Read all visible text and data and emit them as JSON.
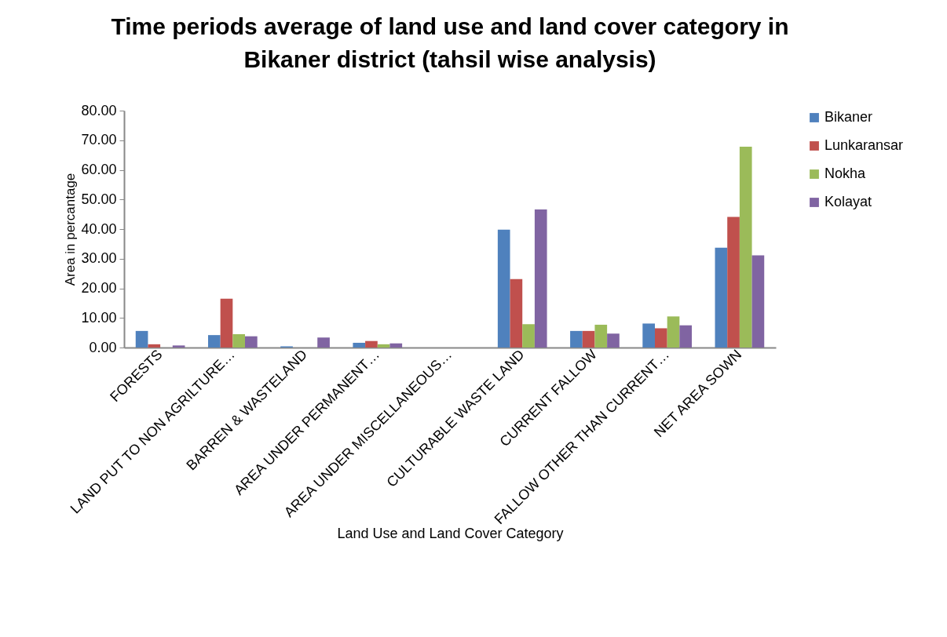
{
  "chart_data": {
    "type": "bar",
    "title": "Time periods average of land use and land cover category in Bikaner district (tahsil wise analysis)",
    "xlabel": "Land Use and Land Cover Category",
    "ylabel": "Area in percantage",
    "categories": [
      "FORESTS",
      "LAND PUT TO NON AGRILTURE…",
      "BARREN & WASTELAND",
      "AREA UNDER PERMANENT…",
      "AREA UNDER MISCELLANEOUS…",
      "CULTURABLE WASTE LAND",
      "CURRENT FALLOW",
      "FALLOW OTHER THAN CURRENT…",
      "NET AREA SOWN"
    ],
    "series": [
      {
        "name": "Bikaner",
        "color": "#4f81bd",
        "values": [
          5.6,
          4.2,
          0.4,
          1.6,
          0,
          39.8,
          5.6,
          8.1,
          33.7
        ]
      },
      {
        "name": "Lunkaransar",
        "color": "#c0504d",
        "values": [
          1.1,
          16.5,
          0,
          2.2,
          0,
          23.1,
          5.6,
          6.5,
          44.1
        ]
      },
      {
        "name": "Nokha",
        "color": "#9bbb59",
        "values": [
          0,
          4.5,
          0,
          1.1,
          0,
          7.9,
          7.7,
          10.5,
          67.8
        ]
      },
      {
        "name": "Kolayat",
        "color": "#8064a2",
        "values": [
          0.7,
          3.8,
          3.4,
          1.4,
          0,
          46.6,
          4.7,
          7.5,
          31.1
        ]
      }
    ],
    "ylim": [
      0,
      80
    ],
    "yticks": [
      {
        "value": 0,
        "label": "0.00"
      },
      {
        "value": 10,
        "label": "10.00"
      },
      {
        "value": 20,
        "label": "20.00"
      },
      {
        "value": 30,
        "label": "30.00"
      },
      {
        "value": 40,
        "label": "40.00"
      },
      {
        "value": 50,
        "label": "50.00"
      },
      {
        "value": 60,
        "label": "60.00"
      },
      {
        "value": 70,
        "label": "70.00"
      },
      {
        "value": 80,
        "label": "80.00"
      }
    ],
    "grid": false,
    "legend": "right"
  }
}
